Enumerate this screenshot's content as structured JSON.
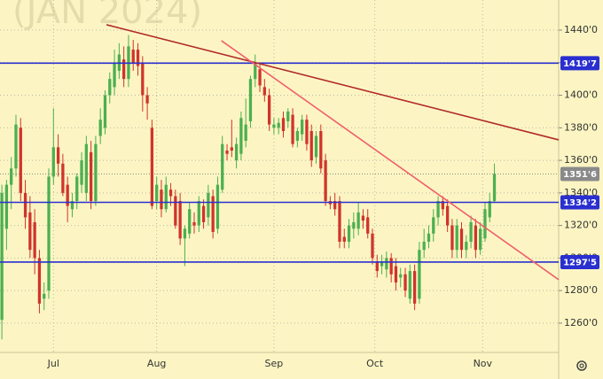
{
  "chart_data": {
    "type": "candlestick",
    "watermark": "(JAN 2024)",
    "candle_fields": [
      "open",
      "high",
      "low",
      "close"
    ],
    "up_color": "#4caf50",
    "down_color": "#d0342c",
    "candles": [
      [
        1262,
        1345,
        1250,
        1340
      ],
      [
        1318,
        1348,
        1305,
        1345
      ],
      [
        1345,
        1362,
        1330,
        1355
      ],
      [
        1355,
        1388,
        1350,
        1382
      ],
      [
        1380,
        1386,
        1335,
        1340
      ],
      [
        1340,
        1348,
        1318,
        1325
      ],
      [
        1328,
        1338,
        1300,
        1305
      ],
      [
        1322,
        1330,
        1290,
        1300
      ],
      [
        1300,
        1305,
        1266,
        1272
      ],
      [
        1275,
        1285,
        1268,
        1278
      ],
      [
        1280,
        1355,
        1275,
        1350
      ],
      [
        1350,
        1392,
        1345,
        1368
      ],
      [
        1368,
        1376,
        1350,
        1358
      ],
      [
        1358,
        1364,
        1338,
        1340
      ],
      [
        1345,
        1350,
        1322,
        1332
      ],
      [
        1330,
        1340,
        1325,
        1335
      ],
      [
        1335,
        1352,
        1330,
        1350
      ],
      [
        1345,
        1365,
        1340,
        1360
      ],
      [
        1340,
        1375,
        1335,
        1370
      ],
      [
        1365,
        1372,
        1330,
        1335
      ],
      [
        1335,
        1375,
        1332,
        1370
      ],
      [
        1375,
        1392,
        1370,
        1385
      ],
      [
        1380,
        1403,
        1376,
        1400
      ],
      [
        1400,
        1414,
        1395,
        1410
      ],
      [
        1405,
        1428,
        1400,
        1420
      ],
      [
        1415,
        1432,
        1410,
        1425
      ],
      [
        1422,
        1430,
        1405,
        1410
      ],
      [
        1410,
        1437,
        1405,
        1430
      ],
      [
        1428,
        1434,
        1415,
        1420
      ],
      [
        1428,
        1432,
        1412,
        1418
      ],
      [
        1420,
        1424,
        1390,
        1400
      ],
      [
        1400,
        1405,
        1385,
        1395
      ],
      [
        1380,
        1385,
        1330,
        1332
      ],
      [
        1335,
        1350,
        1330,
        1345
      ],
      [
        1342,
        1348,
        1325,
        1330
      ],
      [
        1330,
        1350,
        1328,
        1345
      ],
      [
        1342,
        1346,
        1332,
        1338
      ],
      [
        1338,
        1342,
        1318,
        1320
      ],
      [
        1335,
        1340,
        1308,
        1312
      ],
      [
        1312,
        1320,
        1295,
        1318
      ],
      [
        1315,
        1334,
        1312,
        1330
      ],
      [
        1322,
        1328,
        1315,
        1320
      ],
      [
        1320,
        1338,
        1316,
        1335
      ],
      [
        1332,
        1336,
        1318,
        1322
      ],
      [
        1325,
        1345,
        1320,
        1340
      ],
      [
        1338,
        1342,
        1312,
        1316
      ],
      [
        1318,
        1350,
        1315,
        1345
      ],
      [
        1342,
        1375,
        1340,
        1370
      ],
      [
        1366,
        1370,
        1360,
        1364
      ],
      [
        1368,
        1385,
        1362,
        1366
      ],
      [
        1360,
        1374,
        1355,
        1370
      ],
      [
        1364,
        1390,
        1360,
        1386
      ],
      [
        1372,
        1398,
        1368,
        1382
      ],
      [
        1384,
        1412,
        1380,
        1410
      ],
      [
        1410,
        1425,
        1405,
        1420
      ],
      [
        1416,
        1420,
        1402,
        1406
      ],
      [
        1405,
        1410,
        1396,
        1400
      ],
      [
        1400,
        1404,
        1378,
        1382
      ],
      [
        1380,
        1386,
        1376,
        1382
      ],
      [
        1380,
        1386,
        1376,
        1383
      ],
      [
        1386,
        1390,
        1374,
        1378
      ],
      [
        1384,
        1392,
        1380,
        1390
      ],
      [
        1388,
        1392,
        1368,
        1370
      ],
      [
        1372,
        1380,
        1368,
        1378
      ],
      [
        1376,
        1388,
        1372,
        1385
      ],
      [
        1385,
        1388,
        1366,
        1370
      ],
      [
        1378,
        1382,
        1356,
        1360
      ],
      [
        1362,
        1378,
        1358,
        1375
      ],
      [
        1378,
        1382,
        1352,
        1355
      ],
      [
        1360,
        1364,
        1332,
        1335
      ],
      [
        1335,
        1338,
        1330,
        1333
      ],
      [
        1335,
        1340,
        1326,
        1330
      ],
      [
        1335,
        1338,
        1306,
        1310
      ],
      [
        1313,
        1318,
        1306,
        1310
      ],
      [
        1310,
        1324,
        1306,
        1320
      ],
      [
        1318,
        1328,
        1312,
        1322
      ],
      [
        1318,
        1334,
        1314,
        1328
      ],
      [
        1326,
        1330,
        1318,
        1323
      ],
      [
        1325,
        1330,
        1312,
        1315
      ],
      [
        1315,
        1318,
        1296,
        1300
      ],
      [
        1298,
        1302,
        1288,
        1292
      ],
      [
        1295,
        1302,
        1290,
        1298
      ],
      [
        1293,
        1304,
        1288,
        1300
      ],
      [
        1300,
        1303,
        1285,
        1290
      ],
      [
        1295,
        1300,
        1280,
        1285
      ],
      [
        1288,
        1294,
        1282,
        1290
      ],
      [
        1290,
        1294,
        1276,
        1280
      ],
      [
        1275,
        1296,
        1272,
        1292
      ],
      [
        1292,
        1296,
        1268,
        1272
      ],
      [
        1275,
        1310,
        1272,
        1305
      ],
      [
        1305,
        1318,
        1300,
        1310
      ],
      [
        1310,
        1320,
        1306,
        1315
      ],
      [
        1315,
        1330,
        1310,
        1325
      ],
      [
        1325,
        1338,
        1320,
        1335
      ],
      [
        1335,
        1338,
        1326,
        1330
      ],
      [
        1332,
        1336,
        1316,
        1320
      ],
      [
        1320,
        1324,
        1300,
        1305
      ],
      [
        1305,
        1324,
        1300,
        1320
      ],
      [
        1318,
        1322,
        1300,
        1305
      ],
      [
        1305,
        1314,
        1300,
        1310
      ],
      [
        1310,
        1326,
        1306,
        1322
      ],
      [
        1320,
        1324,
        1300,
        1305
      ],
      [
        1305,
        1322,
        1302,
        1318
      ],
      [
        1312,
        1334,
        1310,
        1330
      ],
      [
        1325,
        1340,
        1322,
        1335
      ],
      [
        1335,
        1358,
        1334,
        1351.6
      ]
    ],
    "xlim": [
      -0.4,
      118.7
    ],
    "xticks": [
      {
        "value": 11,
        "label": "Jul"
      },
      {
        "value": 33,
        "label": "Aug"
      },
      {
        "value": 58,
        "label": "Sep"
      },
      {
        "value": 79.5,
        "label": "Oct"
      },
      {
        "value": 102.5,
        "label": "Nov"
      }
    ],
    "ylim": [
      1242,
      1458.5
    ],
    "yticks": [
      {
        "value": 1260,
        "label": "1260'0"
      },
      {
        "value": 1280,
        "label": "1280'0"
      },
      {
        "value": 1300,
        "label": "1300'0"
      },
      {
        "value": 1320,
        "label": "1320'0"
      },
      {
        "value": 1340,
        "label": "1340'0"
      },
      {
        "value": 1360,
        "label": "1360'0"
      },
      {
        "value": 1380,
        "label": "1380'0"
      },
      {
        "value": 1400,
        "label": "1400'0"
      },
      {
        "value": 1420,
        "label": "1420'0"
      },
      {
        "value": 1440,
        "label": "1440'0"
      }
    ],
    "grid": true,
    "level_color": "#2a2fd0",
    "levels": [
      {
        "value": 1419.7,
        "label": "1419'7"
      },
      {
        "value": 1334.2,
        "label": "1334'2"
      },
      {
        "value": 1297.5,
        "label": "1297'5"
      }
    ],
    "last_price": {
      "value": 1351.6,
      "label": "1351'6"
    },
    "last_price_color": "#8a8a8a",
    "trend_lines": [
      {
        "color": "#b22a2a",
        "x": [
          22.3,
          118.7
        ],
        "y": [
          1443.3,
          1372.6
        ]
      },
      {
        "color": "#f0606c",
        "x": [
          46.8,
          118.7
        ],
        "y": [
          1433.5,
          1286.7
        ]
      }
    ]
  }
}
